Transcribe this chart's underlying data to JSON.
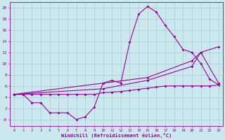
{
  "xlabel": "Windchill (Refroidissement éolien,°C)",
  "background_color": "#cce8ef",
  "line_color": "#990099",
  "grid_color": "#aacccc",
  "xlim": [
    -0.5,
    23.5
  ],
  "ylim": [
    -1.2,
    21
  ],
  "ytick_vals": [
    0,
    2,
    4,
    6,
    8,
    10,
    12,
    14,
    16,
    18,
    20
  ],
  "xtick_vals": [
    0,
    1,
    2,
    3,
    4,
    5,
    6,
    7,
    8,
    9,
    10,
    11,
    12,
    13,
    14,
    15,
    16,
    17,
    18,
    19,
    20,
    21,
    22,
    23
  ],
  "line1_x": [
    0,
    1,
    2,
    3,
    4,
    5,
    6,
    7,
    8,
    9,
    10,
    11,
    12,
    13,
    14,
    15,
    16,
    17,
    18,
    19,
    20,
    21,
    22,
    23
  ],
  "line1_y": [
    4.5,
    4.5,
    3.0,
    3.0,
    1.2,
    1.2,
    1.2,
    0.0,
    0.5,
    2.2,
    6.5,
    7.0,
    6.5,
    13.8,
    18.8,
    20.2,
    19.2,
    16.8,
    14.8,
    12.5,
    12.0,
    10.0,
    7.2,
    6.2
  ],
  "line2_x": [
    0,
    1,
    2,
    3,
    4,
    5,
    6,
    7,
    8,
    9,
    10,
    11,
    12,
    13,
    14,
    15,
    16,
    17,
    18,
    19,
    20,
    21,
    22,
    23
  ],
  "line2_y": [
    4.5,
    4.5,
    4.5,
    4.5,
    4.5,
    4.5,
    4.5,
    4.5,
    4.5,
    4.5,
    4.8,
    4.9,
    5.0,
    5.2,
    5.4,
    5.6,
    5.8,
    6.0,
    6.0,
    6.0,
    6.0,
    6.0,
    6.0,
    6.2
  ],
  "line3_x": [
    0,
    15,
    20,
    21,
    23
  ],
  "line3_y": [
    4.5,
    7.5,
    10.5,
    12.0,
    13.0
  ],
  "line4_x": [
    0,
    10,
    15,
    20,
    21,
    23
  ],
  "line4_y": [
    4.5,
    5.5,
    7.0,
    9.5,
    12.0,
    6.5
  ]
}
